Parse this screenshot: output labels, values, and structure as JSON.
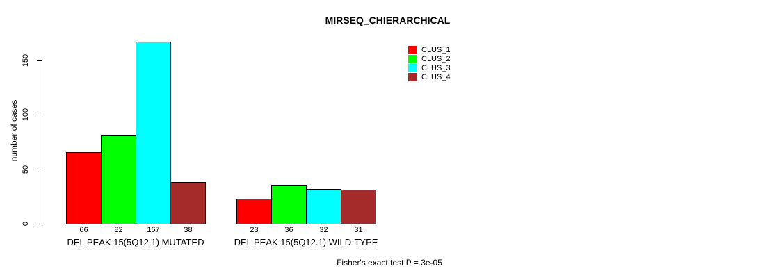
{
  "page": {
    "background_color": "#ffffff"
  },
  "header": {
    "title": "MIRSEQ_CHIERARCHICAL"
  },
  "footer": {
    "note": "Fisher's exact test P = 3e-05"
  },
  "legend": {
    "items": [
      {
        "label": "CLUS_1",
        "color": "#ff0000"
      },
      {
        "label": "CLUS_2",
        "color": "#00ff00"
      },
      {
        "label": "CLUS_3",
        "color": "#00ffff"
      },
      {
        "label": "CLUS_4",
        "color": "#a52a2a"
      }
    ]
  },
  "chart_data": {
    "type": "bar",
    "title": "MIRSEQ_CHIERARCHICAL",
    "xlabel": "",
    "ylabel": "number of cases",
    "categories": [
      "DEL PEAK 15(5Q12.1) MUTATED",
      "DEL PEAK 15(5Q12.1) WILD-TYPE"
    ],
    "series": [
      {
        "name": "CLUS_1",
        "color": "#ff0000",
        "values": [
          66,
          23
        ]
      },
      {
        "name": "CLUS_2",
        "color": "#00ff00",
        "values": [
          82,
          36
        ]
      },
      {
        "name": "CLUS_3",
        "color": "#00ffff",
        "values": [
          167,
          32
        ]
      },
      {
        "name": "CLUS_4",
        "color": "#a52a2a",
        "values": [
          38,
          31
        ]
      }
    ],
    "bar_value_labels_shown": true,
    "yticks": [
      0,
      50,
      100,
      150
    ],
    "ylim": [
      0,
      167
    ],
    "grid": false,
    "bar_border_color": "#000000",
    "legend_position": "top-right",
    "annotation": "Fisher's exact test P = 3e-05"
  }
}
